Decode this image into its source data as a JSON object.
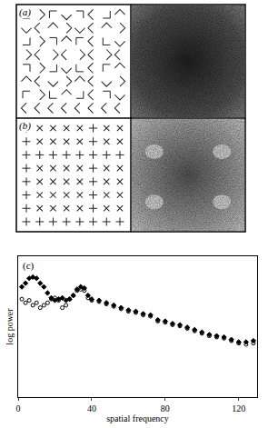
{
  "panels": [
    {
      "label": "(a)"
    },
    {
      "label": "(b)"
    }
  ],
  "chart_data": {
    "type": "scatter",
    "panel_label": "(c)",
    "x_label": "spatial frequency",
    "y_label": "log power",
    "xlim": [
      0,
      130
    ],
    "xticks": [
      0,
      40,
      80,
      120
    ],
    "ylim": [
      0,
      11.5
    ],
    "yticks": [],
    "tick_labels": "x",
    "grid": false,
    "series": [
      {
        "color": "#000000",
        "marker": "diamond",
        "x": [
          2,
          4,
          6,
          8,
          10,
          12,
          14,
          16,
          18,
          20,
          22,
          24,
          26,
          28,
          30,
          32,
          34,
          36,
          38,
          40,
          44,
          48,
          52,
          56,
          60,
          64,
          68,
          72,
          76,
          80,
          84,
          88,
          92,
          96,
          100,
          104,
          108,
          112,
          116,
          120,
          124,
          128
        ],
        "values": [
          9.0,
          9.3,
          9.7,
          9.8,
          9.7,
          9.3,
          9.0,
          8.5,
          8.1,
          7.9,
          8.0,
          8.1,
          7.9,
          8.0,
          8.3,
          8.8,
          9.0,
          8.9,
          8.3,
          8.0,
          7.9,
          7.7,
          7.5,
          7.3,
          7.1,
          7.0,
          6.8,
          6.7,
          6.3,
          6.2,
          6.0,
          5.9,
          5.7,
          5.5,
          5.3,
          5.1,
          5.0,
          4.9,
          4.7,
          4.5,
          4.5,
          4.6
        ]
      },
      {
        "color": "#000000",
        "marker": "circle-open",
        "x": [
          2,
          4,
          6,
          8,
          10,
          12,
          14,
          16,
          18,
          20,
          22,
          24,
          26,
          28,
          30,
          32,
          34,
          36,
          38,
          40,
          44,
          48,
          52,
          56,
          60,
          64,
          68,
          72,
          76,
          80,
          84,
          88,
          92,
          96,
          100,
          104,
          108,
          112,
          116,
          120,
          124,
          128
        ],
        "values": [
          8.0,
          7.7,
          7.9,
          7.5,
          7.7,
          7.3,
          7.5,
          7.7,
          8.0,
          8.1,
          7.9,
          7.3,
          7.5,
          8.0,
          8.3,
          8.7,
          8.8,
          8.7,
          8.1,
          7.9,
          7.8,
          7.6,
          7.4,
          7.2,
          7.0,
          6.9,
          6.7,
          6.6,
          6.2,
          6.1,
          5.9,
          5.8,
          5.6,
          5.4,
          5.2,
          5.0,
          4.9,
          4.8,
          4.6,
          4.4,
          4.3,
          4.4
        ]
      }
    ]
  }
}
